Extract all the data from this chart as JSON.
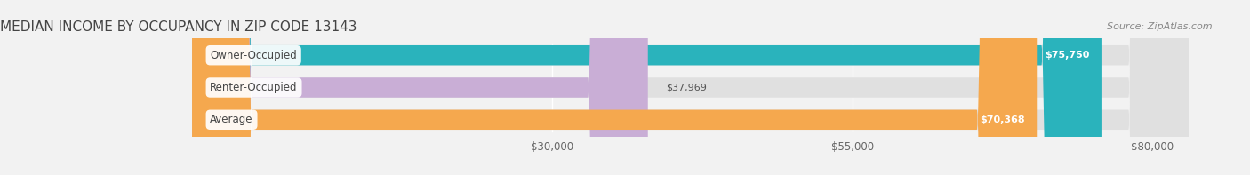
{
  "title": "MEDIAN INCOME BY OCCUPANCY IN ZIP CODE 13143",
  "source": "Source: ZipAtlas.com",
  "categories": [
    "Owner-Occupied",
    "Renter-Occupied",
    "Average"
  ],
  "values": [
    75750,
    37969,
    70368
  ],
  "bar_colors": [
    "#2ab3bc",
    "#c9aed6",
    "#f5a84e"
  ],
  "bar_bg_color": "#e0e0e0",
  "value_label_colors": [
    "#ffffff",
    "#555555",
    "#ffffff"
  ],
  "x_ticks": [
    30000,
    55000,
    80000
  ],
  "x_tick_labels": [
    "$30,000",
    "$55,000",
    "$80,000"
  ],
  "x_max": 83000,
  "x_min": -16000,
  "title_fontsize": 11,
  "source_fontsize": 8,
  "bar_label_fontsize": 8,
  "tick_fontsize": 8.5,
  "category_fontsize": 8.5,
  "background_color": "#f2f2f2"
}
